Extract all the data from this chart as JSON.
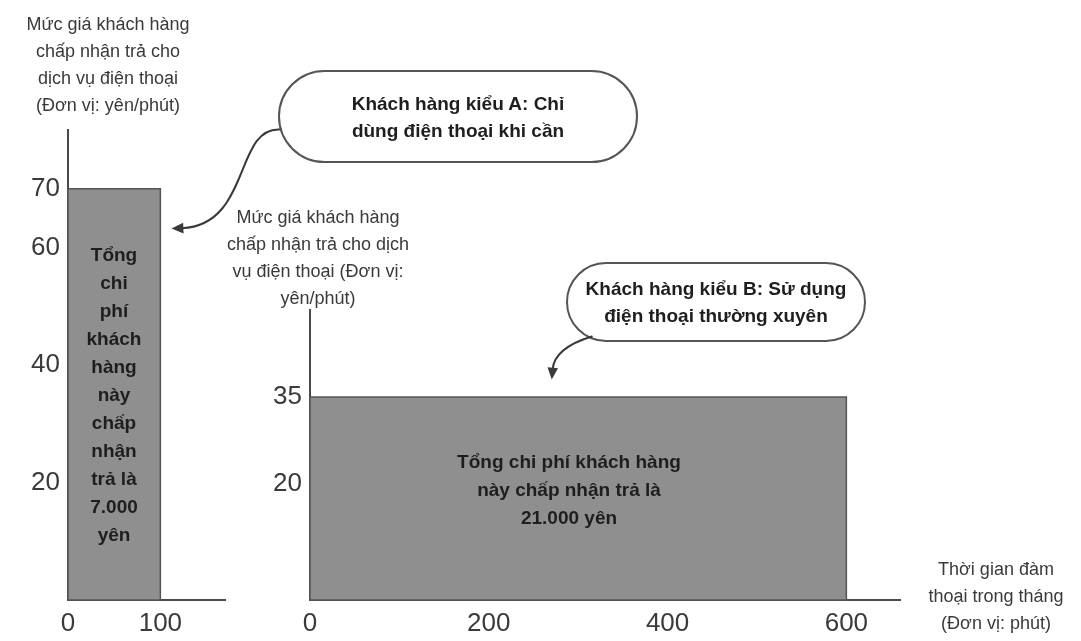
{
  "chart_data": [
    {
      "type": "histogram",
      "bins": [
        0,
        100
      ],
      "values": [
        70
      ],
      "color": "#8f8f8f",
      "xlim": [
        0,
        170
      ],
      "xticks": [
        0,
        100
      ],
      "ylim": [
        0,
        80
      ],
      "yticks": [
        20,
        40,
        60,
        70
      ],
      "ylabel": "Mức giá khách hàng chấp nhận trả cho dịch vụ điện thoại (Đơn vị: yên/phút)",
      "annotations": [
        "Tổng chi phí khách hàng này chấp nhận trả là 7.000 yên",
        "Khách hàng kiểu A: Chỉ dùng điện thoại khi cần"
      ]
    },
    {
      "type": "histogram",
      "bins": [
        0,
        600
      ],
      "values": [
        35
      ],
      "color": "#8f8f8f",
      "xlim": [
        0,
        660
      ],
      "xticks": [
        0,
        200,
        400,
        600
      ],
      "ylim": [
        0,
        50
      ],
      "yticks": [
        20,
        35
      ],
      "xlabel": "Thời gian đàm thoại trong tháng (Đơn vị: phút)",
      "ylabel": "Mức giá khách hàng chấp nhận trả cho dịch vụ điện thoại (Đơn vị: yên/phút)",
      "annotations": [
        "Tổng chi phí khách hàng này chấp nhận trả là 21.000 yên",
        "Khách hàng kiểu B: Sử dụng điện thoại thường xuyên"
      ]
    }
  ]
}
